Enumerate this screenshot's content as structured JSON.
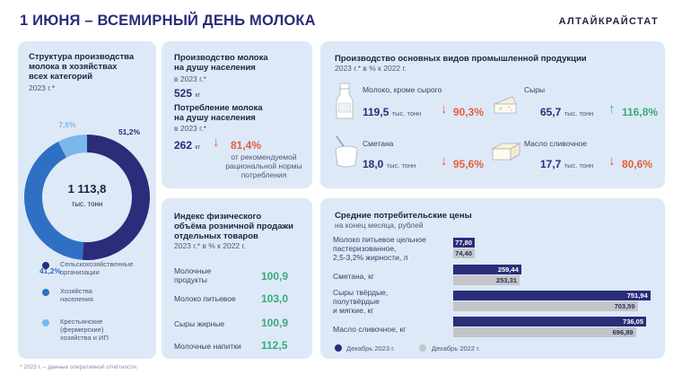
{
  "header": {
    "title": "1 ИЮНЯ – ВСЕМИРНЫЙ ДЕНЬ МОЛОКА",
    "brand": "АЛТАЙКРАЙСТАТ"
  },
  "structure": {
    "title_line1": "Структура производства",
    "title_line2": "молока в хозяйствах",
    "title_line3": "всех категорий",
    "year": "2023 г.*",
    "total": "1 113,8",
    "total_unit": "тыс. тонн",
    "legend": [
      {
        "label_line1": "Сельскохозяйственные",
        "label_line2": "организации",
        "label_line3": "",
        "color": "#2b2c7a"
      },
      {
        "label_line1": "Хозяйства",
        "label_line2": "населения",
        "label_line3": "",
        "color": "#3070c4"
      },
      {
        "label_line1": "Крестьянские",
        "label_line2": "(фермерские)",
        "label_line3": "хозяйства и ИП",
        "color": "#7ab8ec"
      }
    ]
  },
  "percapita": {
    "prod_title1": "Производство молока",
    "prod_title2": "на душу населения",
    "prod_year": "в 2023 г.*",
    "prod_value": "525",
    "prod_unit": "кг",
    "cons_title1": "Потребление молока",
    "cons_title2": "на душу населения",
    "cons_year": "в 2023 г.*",
    "cons_value": "262",
    "cons_unit": "кг",
    "cons_pct": "81,4%",
    "cons_note1": "от рекомендуемой",
    "cons_note2": "рациональной нормы",
    "cons_note3": "потребления"
  },
  "industrial": {
    "title": "Производство основных видов промышленной продукции",
    "subtitle": "2023 г.* в % к 2022 г.",
    "items": [
      {
        "name": "Молоко, кроме сырого",
        "value": "119,5",
        "unit": "тыс. тонн",
        "pct": "90,3%",
        "icon": "milk-bottle-icon"
      },
      {
        "name": "Сыры",
        "value": "65,7",
        "unit": "тыс. тонн",
        "pct": "116,8%",
        "icon": "cheese-icon"
      },
      {
        "name": "Сметана",
        "value": "18,0",
        "unit": "тыс. тонн",
        "pct": "95,6%",
        "icon": "sour-cream-icon"
      },
      {
        "name": "Масло сливочное",
        "value": "17,7",
        "unit": "тыс. тонн",
        "pct": "80,6%",
        "icon": "butter-icon"
      }
    ]
  },
  "retail": {
    "title1": "Индекс физического",
    "title2": "объёма розничной продажи",
    "title3": "отдельных товаров",
    "subtitle": "2023 г.* в % к 2022 г.",
    "rows": [
      {
        "label1": "Молочные",
        "label2": "продукты",
        "value": "100,9"
      },
      {
        "label1": "Молоко питьевое",
        "label2": "",
        "value": "103,0"
      },
      {
        "label1": "Сыры жирные",
        "label2": "",
        "value": "100,9"
      },
      {
        "label1": "Молочные напитки",
        "label2": "",
        "value": "112,5"
      }
    ]
  },
  "prices": {
    "title": "Средние потребительские цены",
    "subtitle": "на конец месяца, рублей",
    "legend_current": "Декабрь 2023 г.",
    "legend_prev": "Декабрь 2022 г.",
    "color_current": "#2b2c7a",
    "color_prev": "#c4c5c9"
  },
  "footnote": "* 2023 г. – данные оперативной отчётности.",
  "chart_data": [
    {
      "type": "pie",
      "title": "Структура производства молока в хозяйствах всех категорий",
      "categories": [
        "Сельскохозяйственные организации",
        "Хозяйства населения",
        "Крестьянские (фермерские) хозяйства и ИП"
      ],
      "values": [
        51.2,
        41.2,
        7.6
      ],
      "labels": [
        "51,2%",
        "41,2%",
        "7,6%"
      ],
      "colors": [
        "#2b2c7a",
        "#3070c4",
        "#7ab8ec"
      ]
    },
    {
      "type": "bar",
      "title": "Средние потребительские цены",
      "categories": [
        [
          "Молоко питьевое цельное",
          "пастеризованное,",
          "2,5-3,2% жирности,  л"
        ],
        [
          "Сметана, кг"
        ],
        [
          "Сыры твёрдые,",
          "полутвёрдые",
          "и мягкие, кг"
        ],
        [
          "Масло сливочное, кг"
        ]
      ],
      "series": [
        {
          "name": "Декабрь 2023 г.",
          "values": [
            77.8,
            259.44,
            751.94,
            736.05
          ],
          "labels": [
            "77,80",
            "259,44",
            "751,94",
            "736,05"
          ]
        },
        {
          "name": "Декабрь 2022 г.",
          "values": [
            74.4,
            253.31,
            703.59,
            696.89
          ],
          "labels": [
            "74,40",
            "253,31",
            "703,59",
            "696,89"
          ]
        }
      ],
      "xlim": [
        0,
        760
      ]
    }
  ]
}
